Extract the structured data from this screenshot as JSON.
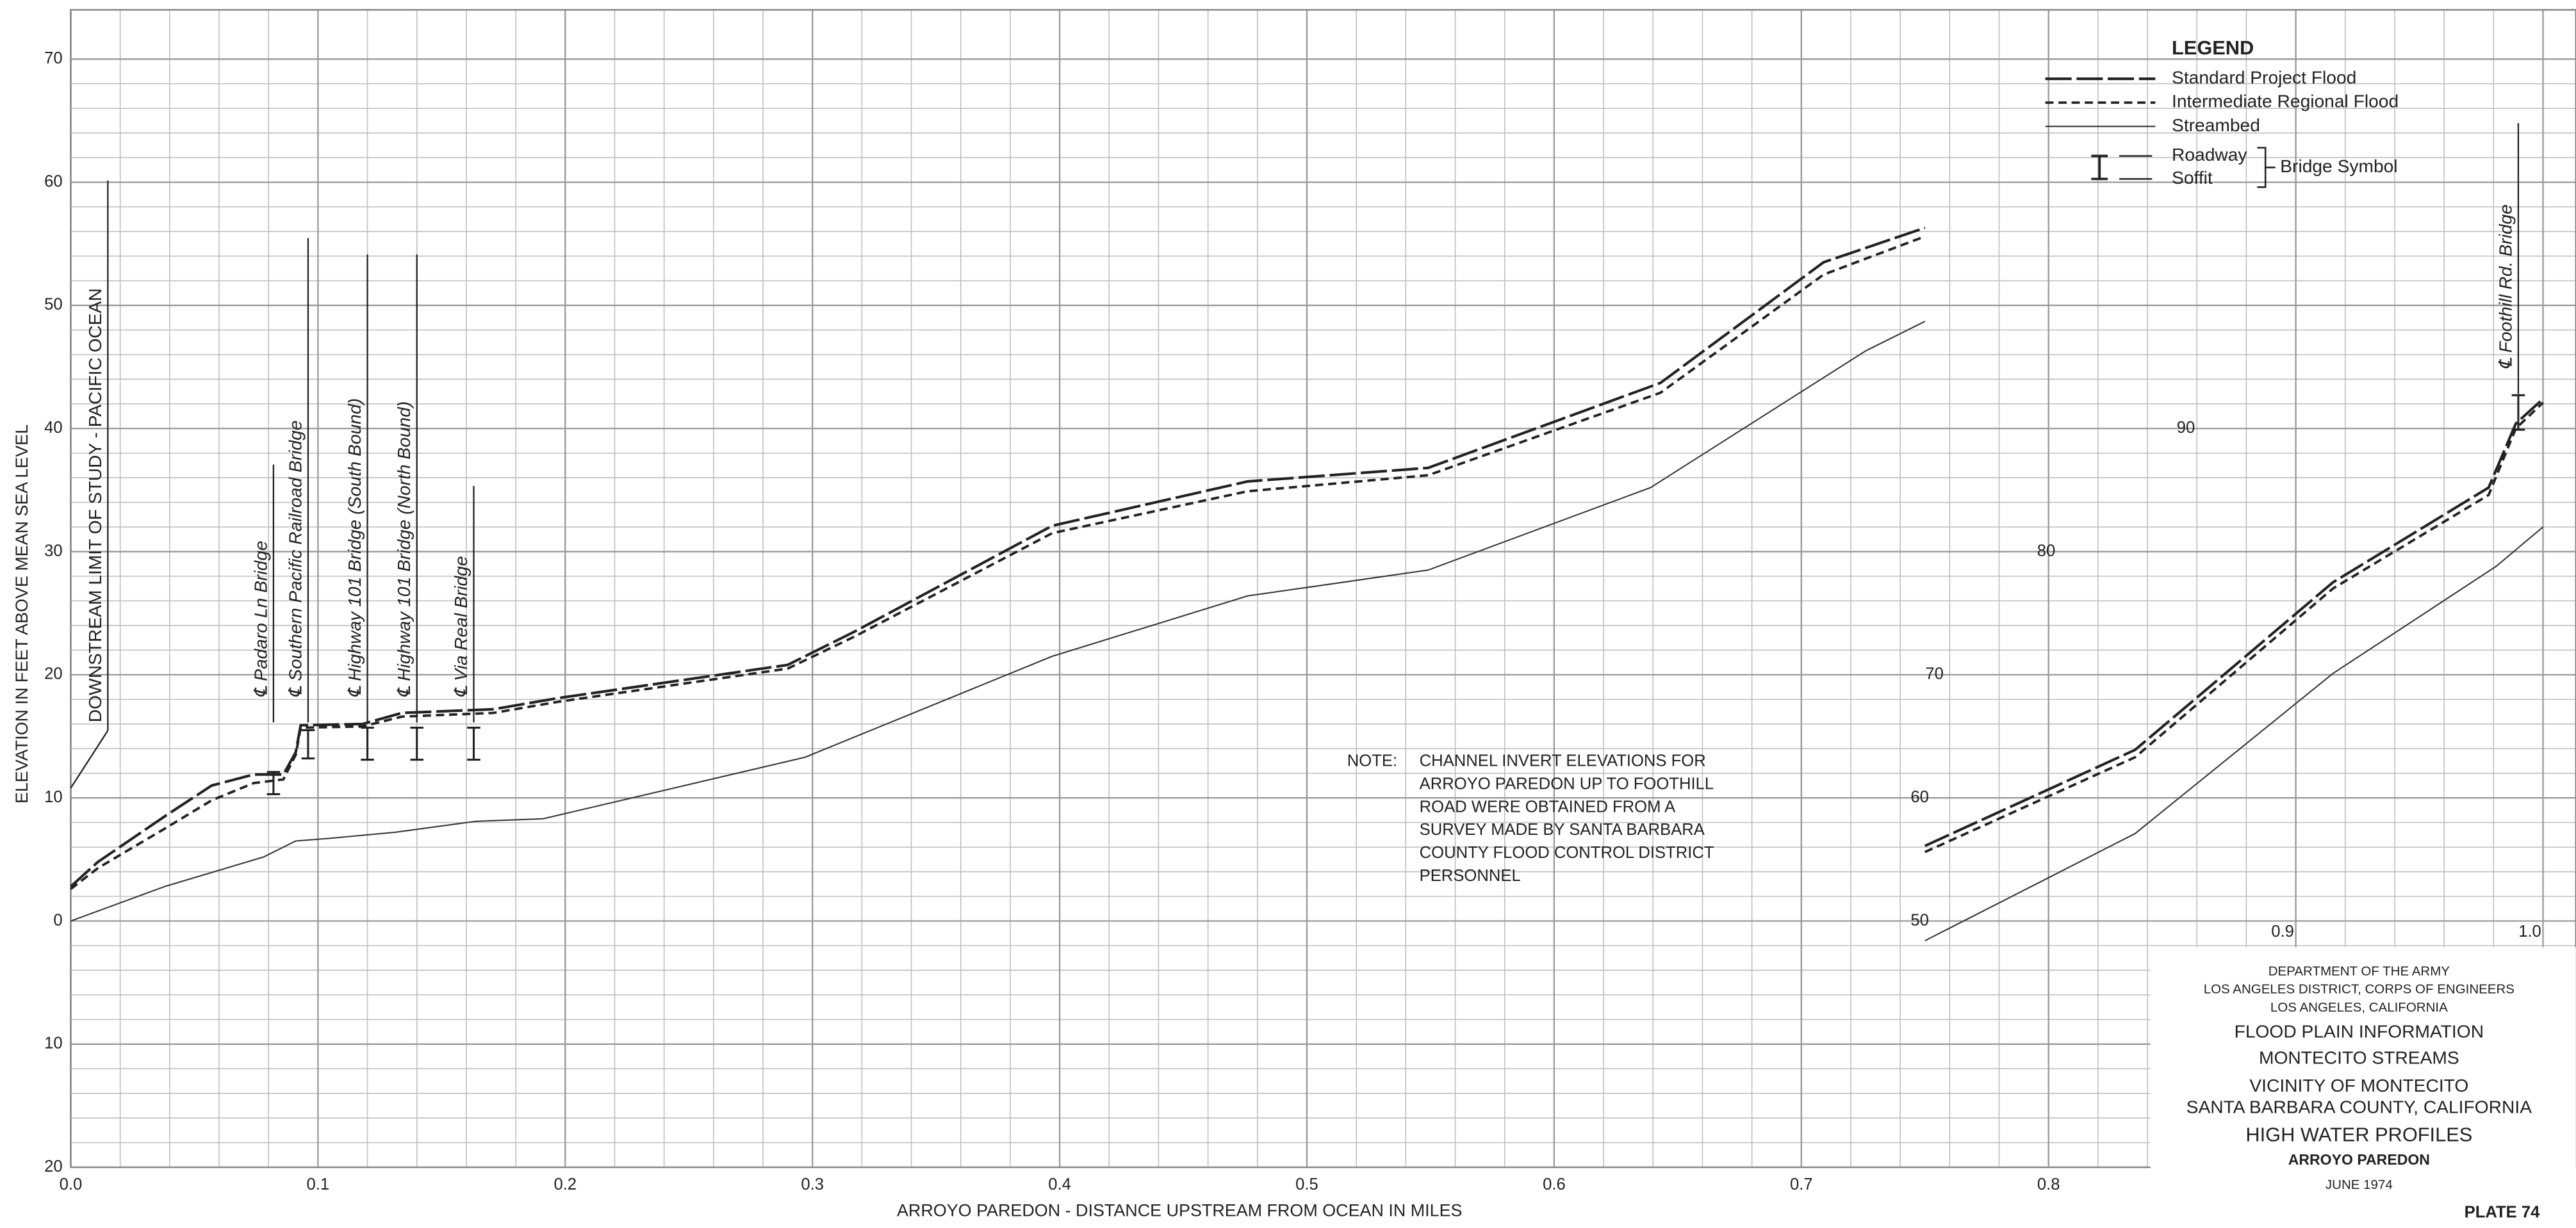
{
  "chart_data": {
    "type": "line",
    "x_label": "ARROYO PAREDON - DISTANCE UPSTREAM FROM OCEAN IN MILES",
    "y_label": "ELEVATION IN FEET ABOVE MEAN SEA LEVEL",
    "xlim": [
      0,
      1
    ],
    "xticks": [
      {
        "value": 0,
        "label": "0.0"
      },
      0.1,
      0.2,
      0.3,
      0.4,
      0.5,
      0.6,
      0.7,
      0.8,
      0.9,
      {
        "value": 1,
        "label": "1.0"
      }
    ],
    "ylim": [
      -20,
      70
    ],
    "yticks": [
      {
        "value": -20,
        "label": "20"
      },
      {
        "value": -10,
        "label": "10"
      },
      0,
      10,
      20,
      30,
      40,
      50,
      60,
      70
    ],
    "y2lim": [
      30,
      120
    ],
    "y2ticks": [
      50,
      60,
      70,
      80,
      90
    ],
    "grid": true,
    "legend_title": "LEGEND",
    "legend_position": "upper right",
    "series": [
      {
        "name": "Standard Project Flood",
        "style": "long-dash",
        "color": "#222222",
        "x": [
          0,
          0.011,
          0.038,
          0.057,
          0.074,
          0.086,
          0.091,
          0.093,
          0.118,
          0.134,
          0.171,
          0.197,
          0.29,
          0.317,
          0.397,
          0.476,
          0.549,
          0.643,
          0.709,
          0.75
        ],
        "values": [
          2.8,
          4.8,
          8.5,
          11,
          11.9,
          11.9,
          13.7,
          15.9,
          16,
          16.9,
          17.2,
          18.1,
          20.8,
          23.5,
          32.1,
          35.7,
          36.8,
          43.7,
          53.5,
          56.3
        ]
      },
      {
        "name": "Intermediate Regional Flood",
        "style": "short-dash",
        "color": "#222222",
        "x": [
          0,
          0.011,
          0.038,
          0.057,
          0.074,
          0.086,
          0.091,
          0.093,
          0.118,
          0.134,
          0.171,
          0.197,
          0.29,
          0.317,
          0.397,
          0.476,
          0.549,
          0.643,
          0.709,
          0.75
        ],
        "values": [
          2.6,
          4.3,
          7.5,
          9.8,
          11.2,
          11.5,
          13.5,
          15.7,
          15.8,
          16.6,
          16.9,
          17.8,
          20.5,
          23.1,
          31.5,
          34.9,
          36.2,
          42.9,
          52.5,
          55.6
        ]
      },
      {
        "name": "Streambed",
        "style": "solid",
        "color": "#333333",
        "x": [
          0,
          0.038,
          0.078,
          0.091,
          0.104,
          0.131,
          0.164,
          0.191,
          0.297,
          0.397,
          0.476,
          0.549,
          0.639,
          0.726,
          0.75
        ],
        "values": [
          0,
          2.8,
          5.2,
          6.5,
          6.7,
          7.2,
          8.1,
          8.3,
          13.3,
          21.5,
          26.4,
          28.5,
          35.2,
          46.3,
          48.7
        ]
      },
      {
        "axis": "y2",
        "style": "long-dash",
        "color": "#222222",
        "x": [
          0.75,
          0.835,
          0.915,
          0.978,
          0.989,
          1.0
        ],
        "values": [
          56.1,
          63.9,
          77.5,
          85.2,
          90.4,
          92.4
        ]
      },
      {
        "axis": "y2",
        "style": "short-dash",
        "color": "#222222",
        "x": [
          0.75,
          0.835,
          0.915,
          0.978,
          0.989,
          1.0
        ],
        "values": [
          55.6,
          63.3,
          77,
          84.6,
          90,
          92.1
        ]
      },
      {
        "axis": "y2",
        "style": "solid",
        "color": "#333333",
        "x": [
          0.75,
          0.835,
          0.915,
          0.981,
          1.0
        ],
        "values": [
          48.4,
          57.1,
          70.1,
          78.8,
          82
        ]
      }
    ],
    "bridge_legend": {
      "roadway": "Roadway",
      "soffit": "Soffit",
      "label": "Bridge Symbol"
    },
    "annotations": [
      {
        "text": "DOWNSTREAM LIMIT OF STUDY - PACIFIC OCEAN",
        "x": 0.015
      },
      {
        "text": "℄ Padaro Ln Bridge",
        "x": 0.082,
        "roadway": 12.1,
        "soffit": 10.3
      },
      {
        "text": "℄ Southern Pacific Railroad Bridge",
        "x": 0.096,
        "roadway": 15.5,
        "soffit": 13.2
      },
      {
        "text": "℄ Highway 101 Bridge (South Bound)",
        "x": 0.12,
        "roadway": 15.7,
        "soffit": 13.1
      },
      {
        "text": "℄ Highway 101 Bridge (North Bound)",
        "x": 0.14,
        "roadway": 15.7,
        "soffit": 13.1
      },
      {
        "text": "℄ Via Real Bridge",
        "x": 0.163,
        "roadway": 15.7,
        "soffit": 13.1
      },
      {
        "text": "℄ Foothill Rd. Bridge",
        "x": 0.99,
        "axis": "y2",
        "roadway": 92.7,
        "soffit": 89.9
      }
    ],
    "note": {
      "label": "NOTE:",
      "lines": [
        "CHANNEL INVERT ELEVATIONS FOR",
        "ARROYO PAREDON UP TO FOOTHILL",
        "ROAD WERE OBTAINED FROM A",
        "SURVEY MADE BY SANTA BARBARA",
        "COUNTY FLOOD CONTROL DISTRICT",
        "PERSONNEL"
      ]
    }
  },
  "title_block": {
    "lines": [
      "DEPARTMENT OF THE ARMY",
      "LOS ANGELES DISTRICT, CORPS OF ENGINEERS",
      "LOS ANGELES, CALIFORNIA",
      "FLOOD PLAIN INFORMATION",
      "MONTECITO STREAMS",
      "VICINITY OF MONTECITO",
      "SANTA BARBARA COUNTY, CALIFORNIA",
      "HIGH WATER PROFILES",
      "ARROYO PAREDON",
      "JUNE 1974"
    ],
    "plate": "PLATE 74"
  }
}
